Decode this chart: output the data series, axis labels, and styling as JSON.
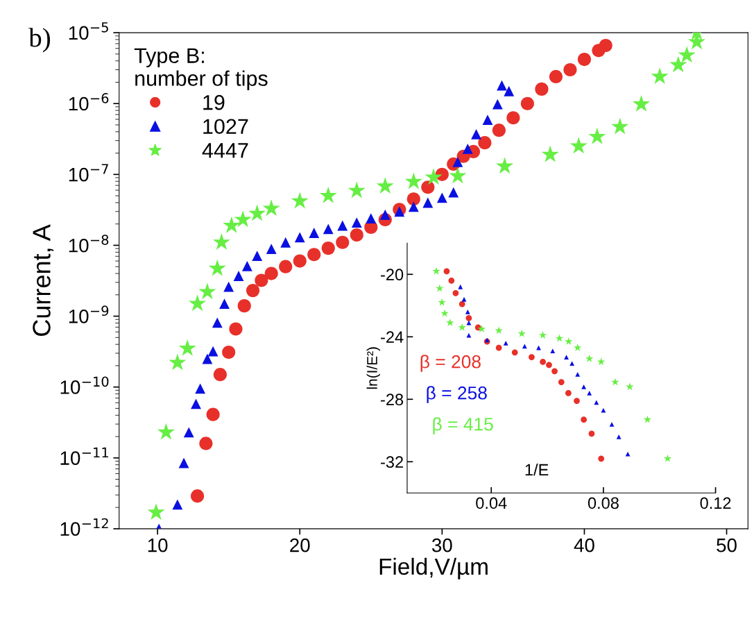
{
  "chart_data": [
    {
      "type": "scatter",
      "xlabel": "Field,V/µm",
      "ylabel": "Current, A",
      "legend_title": "Type B:\nnumber of tips",
      "legend": "top left",
      "log": "y",
      "grid": false,
      "annotations": [
        "b)"
      ],
      "xlim": [
        7.3,
        51.5
      ],
      "xticks": [
        10,
        20,
        30,
        40,
        50
      ],
      "ylim": [
        1e-12,
        1e-05
      ],
      "yticks": [
        {
          "value": 1e-12,
          "label": "10$^{−12}$"
        },
        {
          "value": 1e-11,
          "label": "10$^{−11}$"
        },
        {
          "value": 1e-10,
          "label": "10$^{−10}$"
        },
        {
          "value": 1e-09,
          "label": "10$^{−9}$"
        },
        {
          "value": 1e-08,
          "label": "10$^{−8}$"
        },
        {
          "value": 1e-07,
          "label": "10$^{−7}$"
        },
        {
          "value": 1e-06,
          "label": "10$^{−6}$"
        },
        {
          "value": 1e-05,
          "label": "10$^{−5}$"
        }
      ],
      "series": [
        {
          "name": "19",
          "color": "#e8302a",
          "marker": "circle",
          "x": [
            12.8,
            13.4,
            13.9,
            14.4,
            15.0,
            15.5,
            16.1,
            16.7,
            17.3,
            18,
            19,
            20,
            21,
            22,
            23,
            24,
            25,
            26,
            27,
            28,
            29,
            30,
            30.8,
            31.5,
            32.2,
            33,
            34,
            35,
            36,
            37,
            38,
            39,
            40,
            41,
            41.5
          ],
          "values": [
            2.9e-12,
            1.6e-11,
            4.1e-11,
            1.5e-10,
            3.1e-10,
            6.6e-10,
            1.4e-09,
            2.3e-09,
            3.2e-09,
            4e-09,
            5e-09,
            6e-09,
            7.4e-09,
            9.1e-09,
            1.1e-08,
            1.4e-08,
            1.8e-08,
            2.3e-08,
            3.2e-08,
            4.5e-08,
            6.6e-08,
            1e-07,
            1.4e-07,
            1.8e-07,
            2.1e-07,
            2.8e-07,
            4.2e-07,
            6.3e-07,
            1e-06,
            1.6e-06,
            2.4e-06,
            3e-06,
            4.2e-06,
            5.6e-06,
            6.6e-06
          ]
        },
        {
          "name": "1027",
          "color": "#0a10e0",
          "marker": "triangle",
          "x": [
            10.1,
            11.4,
            11.85,
            12.2,
            12.7,
            13.0,
            13.5,
            13.9,
            14.2,
            14.7,
            15.0,
            15.7,
            16.3,
            17,
            18,
            19,
            20,
            21,
            22,
            23,
            24,
            25,
            26,
            27,
            28,
            29,
            30,
            30.8,
            31.1,
            31.8,
            32.4,
            33.2,
            33.9,
            34.2,
            34.7
          ],
          "values": [
            1e-12,
            2.2e-12,
            8.5e-12,
            2.3e-11,
            5.8e-11,
            9.5e-11,
            2.5e-10,
            3.2e-10,
            8.1e-10,
            1.5e-09,
            2.6e-09,
            3.7e-09,
            5.1e-09,
            7.1e-09,
            8.9e-09,
            1.1e-08,
            1.3e-08,
            1.5e-08,
            1.7e-08,
            1.9e-08,
            2.1e-08,
            2.4e-08,
            2.7e-08,
            3e-08,
            3.5e-08,
            4e-08,
            4.7e-08,
            5.6e-08,
            1.5e-07,
            2.3e-07,
            3.7e-07,
            5.9e-07,
            9.8e-07,
            1.8e-06,
            1.5e-06
          ]
        },
        {
          "name": "4447",
          "color": "#66ee44",
          "marker": "star",
          "x": [
            9.9,
            10.6,
            11.4,
            12.1,
            12.8,
            13.5,
            14.2,
            14.5,
            15.2,
            16,
            17,
            18,
            20,
            22,
            24,
            26,
            28,
            29.4,
            31.1,
            34.4,
            37.6,
            39.6,
            40.9,
            42.5,
            44,
            45.3,
            46.6,
            47.2,
            47.9,
            47.9
          ],
          "values": [
            1.7e-12,
            2.3e-11,
            2.2e-10,
            3.5e-10,
            1.5e-09,
            2.2e-09,
            4.7e-09,
            1.1e-08,
            1.9e-08,
            2.3e-08,
            2.8e-08,
            3.3e-08,
            4.2e-08,
            5e-08,
            5.9e-08,
            6.8e-08,
            7.9e-08,
            9.1e-08,
            9.5e-08,
            1.3e-07,
            1.9e-07,
            2.5e-07,
            3.4e-07,
            4.7e-07,
            9.8e-07,
            2.4e-06,
            3.5e-06,
            4.8e-06,
            7.4e-06,
            1e-05
          ]
        }
      ]
    },
    {
      "type": "scatter",
      "xlabel": "1/E",
      "ylabel": "ln(I/E²)",
      "legend": false,
      "grid": false,
      "xlim": [
        0.01,
        0.12
      ],
      "xticks": [
        0.04,
        0.08,
        0.12
      ],
      "ylim": [
        -34,
        -18
      ],
      "yticks": [
        -20,
        -24,
        -28,
        -32
      ],
      "series": [
        {
          "name": "β = 208",
          "color": "#e8302a",
          "marker": "circle",
          "x": [
            0.0241,
            0.0258,
            0.0273,
            0.0296,
            0.032,
            0.0353,
            0.0385,
            0.0427,
            0.0484,
            0.0544,
            0.0584,
            0.0606,
            0.0626,
            0.065,
            0.0675,
            0.0705,
            0.073,
            0.0758,
            0.0792
          ],
          "values": [
            -19.8,
            -20.4,
            -21.2,
            -21.9,
            -22.8,
            -23.4,
            -24.3,
            -24.7,
            -25.0,
            -25.3,
            -25.6,
            -25.8,
            -26.2,
            -26.9,
            -27.6,
            -28.1,
            -29.3,
            -30.2,
            -31.8
          ]
        },
        {
          "name": "β = 258",
          "color": "#0a10e0",
          "marker": "triangle",
          "x": [
            0.029,
            0.0303,
            0.0316,
            0.032,
            0.032,
            0.0385,
            0.0452,
            0.0519,
            0.0569,
            0.0619,
            0.0668,
            0.0688,
            0.0708,
            0.073,
            0.075,
            0.0775,
            0.08,
            0.083,
            0.0855,
            0.0887
          ],
          "values": [
            -20.8,
            -21.6,
            -22.4,
            -23.1,
            -23.9,
            -24.2,
            -24.4,
            -24.6,
            -24.7,
            -24.9,
            -25.3,
            -25.7,
            -26.4,
            -27.2,
            -27.6,
            -28.2,
            -28.7,
            -29.6,
            -30.4,
            -31.5
          ]
        },
        {
          "name": "β = 415",
          "color": "#66ee44",
          "marker": "star",
          "x": [
            0.0204,
            0.0216,
            0.0224,
            0.0234,
            0.0253,
            0.0296,
            0.0366,
            0.0427,
            0.0509,
            0.0584,
            0.0643,
            0.0676,
            0.0708,
            0.075,
            0.0792,
            0.0842,
            0.0894,
            0.0957,
            0.1029
          ],
          "values": [
            -19.8,
            -20.9,
            -21.8,
            -22.5,
            -23.1,
            -23.4,
            -23.5,
            -23.6,
            -23.8,
            -23.9,
            -24.1,
            -24.3,
            -24.7,
            -25.4,
            -25.6,
            -26.9,
            -27.2,
            -29.3,
            -31.8
          ]
        }
      ]
    }
  ]
}
